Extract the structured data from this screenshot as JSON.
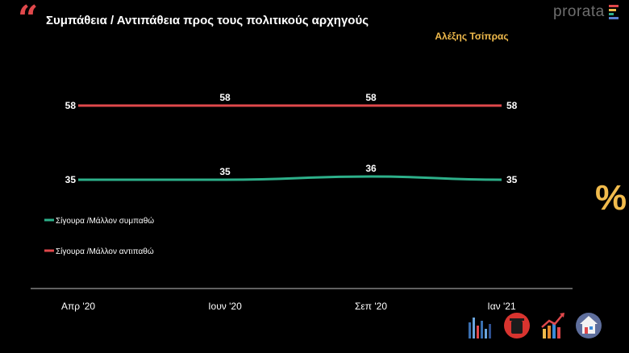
{
  "header": {
    "title": "Συμπάθεια / Αντιπάθεια προς τους πολιτικούς αρχηγούς",
    "subtitle": "Αλέξης Τσίπρας",
    "logo_text": "prorata",
    "quote_mark": "“",
    "percent_symbol": "%"
  },
  "colors": {
    "background": "#000000",
    "accent": "#f1bb4c",
    "series_positive": "#2db08a",
    "series_negative": "#e0484b",
    "axis": "#bfbfbf"
  },
  "chart_data": {
    "type": "line",
    "categories": [
      "Απρ '20",
      "Ιουν '20",
      "Σεπ '20",
      "Ιαν '21"
    ],
    "series": [
      {
        "name": "Σίγουρα /Μάλλον συμπαθώ",
        "values": [
          35,
          35,
          36,
          35
        ],
        "color": "#2db08a"
      },
      {
        "name": "Σίγουρα /Μάλλον αντιπαθώ",
        "values": [
          58,
          58,
          58,
          58
        ],
        "color": "#e0484b"
      }
    ],
    "data_labels": true,
    "legend_position": "left",
    "grid": false
  },
  "footer_icons": [
    "bar-chart-icon",
    "trash-bin-icon",
    "growth-chart-icon",
    "home-icon"
  ]
}
